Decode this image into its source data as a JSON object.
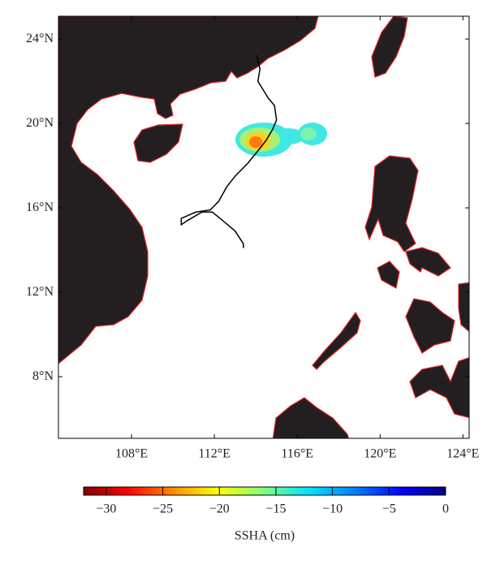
{
  "chart_data": {
    "type": "map",
    "xlim": [
      104.47,
      124.3
    ],
    "ylim": [
      5.08,
      25.08
    ],
    "xticks": [
      {
        "value": 108,
        "label": "108°E"
      },
      {
        "value": 112,
        "label": "112°E"
      },
      {
        "value": 116,
        "label": "116°E"
      },
      {
        "value": 120,
        "label": "120°E"
      },
      {
        "value": 124,
        "label": "124°E"
      }
    ],
    "yticks": [
      {
        "value": 8,
        "label": "8°N"
      },
      {
        "value": 12,
        "label": "12°N"
      },
      {
        "value": 16,
        "label": "16°N"
      },
      {
        "value": 20,
        "label": "20°N"
      },
      {
        "value": 24,
        "label": "24°N"
      }
    ],
    "track": {
      "color": "#000000",
      "lon": [
        114.04,
        114.2,
        114.1,
        114.6,
        114.9,
        115.0,
        114.8,
        114.5,
        114.1,
        113.6,
        113.0,
        112.6,
        112.2,
        111.8,
        111.1,
        110.4,
        110.4,
        110.7,
        111.4,
        111.9,
        112.4,
        113.0,
        113.4,
        113.4
      ],
      "lat": [
        23.23,
        22.58,
        22.0,
        21.2,
        20.85,
        20.16,
        19.7,
        19.2,
        18.7,
        18.1,
        17.5,
        17.0,
        16.3,
        15.9,
        15.8,
        15.5,
        15.2,
        15.4,
        15.8,
        15.8,
        15.4,
        14.9,
        14.3,
        14.1
      ]
    },
    "colorbar": {
      "label": "SSHA (cm)",
      "lim": [
        -32,
        0
      ],
      "ticks": [
        {
          "value": -30,
          "label": "−30"
        },
        {
          "value": -25,
          "label": "−25"
        },
        {
          "value": -20,
          "label": "−20"
        },
        {
          "value": -15,
          "label": "−15"
        },
        {
          "value": -10,
          "label": "−10"
        },
        {
          "value": -5,
          "label": "−5"
        },
        0
      ]
    }
  }
}
